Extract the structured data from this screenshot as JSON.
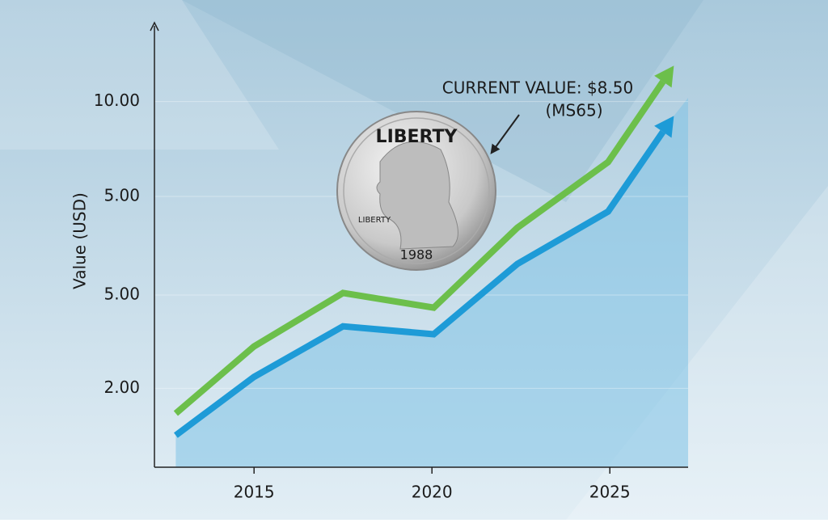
{
  "chart_data": {
    "type": "line",
    "y_label": "Value (USD)",
    "annotation": [
      "CURRENT VALUE: $8.50",
      "(MS65)"
    ],
    "coin": {
      "top_text": "LIBERTY",
      "side_text": "LIBERTY",
      "year": "1988"
    },
    "x": [
      2012.8,
      2015,
      2017.5,
      2020.05,
      2022.4,
      2024.95,
      2026.8
    ],
    "series": [
      {
        "color": "#6cbf4b",
        "values": [
          1.3,
          3.17,
          4.66,
          4.25,
          6.48,
          8.31,
          11.0
        ]
      },
      {
        "color": "#1e9bd7",
        "values": [
          0.69,
          2.32,
          3.73,
          3.51,
          5.47,
          6.93,
          9.6
        ]
      }
    ],
    "area_color": "#7fc3e6",
    "xlim": [
      2012.2,
      2027.2
    ],
    "ylim": [
      -0.2,
      12.2
    ],
    "xticks": [
      2015,
      2020,
      2025
    ],
    "yticks": [
      {
        "value": 10,
        "label": "10.00"
      },
      {
        "value": 2,
        "label": "2.00"
      }
    ],
    "y_extra_labels": [
      "5.00",
      "5.00"
    ],
    "grid": true
  }
}
